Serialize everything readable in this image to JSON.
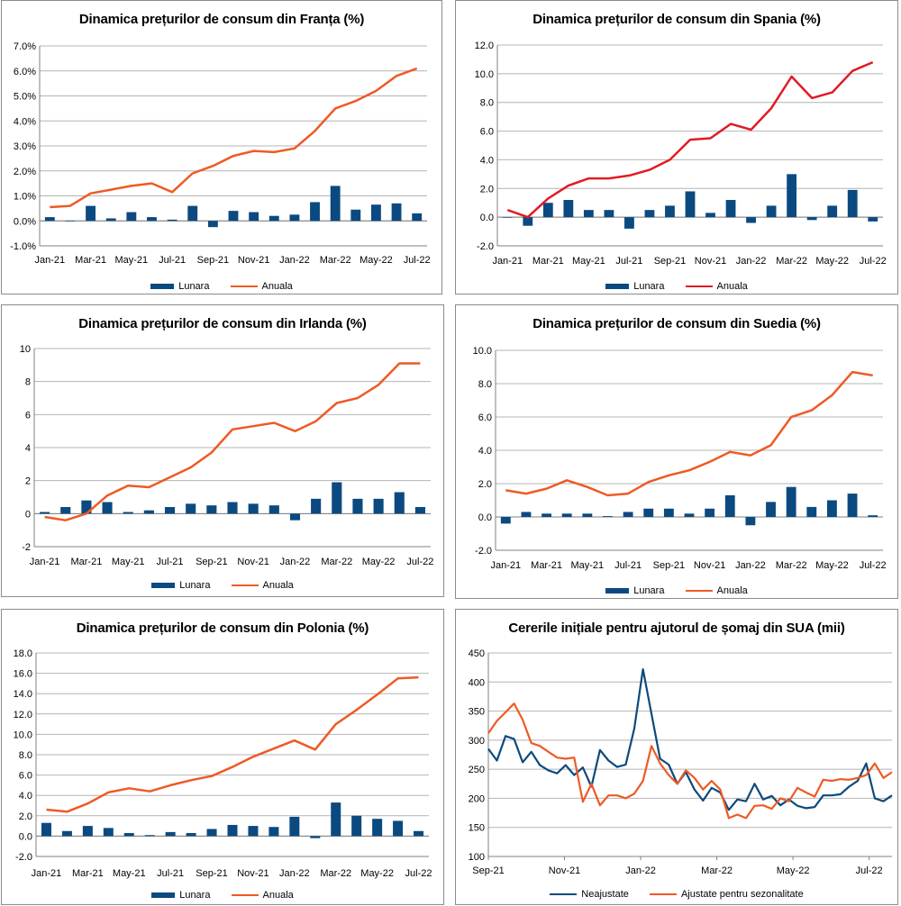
{
  "colors": {
    "bar": "#0b4a80",
    "orange": "#ee5a24",
    "red": "#e01b24",
    "navy": "#0c4a7c",
    "grid": "#b4b4b4",
    "axis": "#808080"
  },
  "chart_data": [
    {
      "id": "france",
      "type": "bar+line",
      "title": "Dinamica prețurilor de consum din Franța (%)",
      "ylim": [
        -1,
        7
      ],
      "ystep": 1,
      "ytick_format": "pct1",
      "xticks": [
        "Jan-21",
        "Mar-21",
        "May-21",
        "Jul-21",
        "Sep-21",
        "Nov-21",
        "Jan-22",
        "Mar-22",
        "May-22",
        "Jul-22"
      ],
      "legend": [
        "Lunara",
        "Anuala"
      ],
      "line_color_key": "orange",
      "series": [
        {
          "name": "Lunara",
          "kind": "bar",
          "values": [
            0.15,
            0.0,
            0.6,
            0.1,
            0.35,
            0.15,
            0.05,
            0.6,
            -0.25,
            0.4,
            0.35,
            0.2,
            0.25,
            0.75,
            1.4,
            0.45,
            0.65,
            0.7,
            0.3
          ]
        },
        {
          "name": "Anuala",
          "kind": "line",
          "values": [
            0.55,
            0.6,
            1.1,
            1.25,
            1.4,
            1.5,
            1.15,
            1.9,
            2.2,
            2.6,
            2.8,
            2.75,
            2.9,
            3.6,
            4.5,
            4.8,
            5.2,
            5.8,
            6.1
          ]
        }
      ]
    },
    {
      "id": "spain",
      "type": "bar+line",
      "title": "Dinamica prețurilor de consum din Spania (%)",
      "ylim": [
        -2,
        12
      ],
      "ystep": 2,
      "ytick_format": "dec1",
      "xticks": [
        "Jan-21",
        "Mar-21",
        "May-21",
        "Jul-21",
        "Sep-21",
        "Nov-21",
        "Jan-22",
        "Mar-22",
        "May-22",
        "Jul-22"
      ],
      "legend": [
        "Lunara",
        "Anuala"
      ],
      "line_color_key": "red",
      "series": [
        {
          "name": "Lunara",
          "kind": "bar",
          "values": [
            0.0,
            -0.6,
            1.0,
            1.2,
            0.5,
            0.5,
            -0.8,
            0.5,
            0.8,
            1.8,
            0.3,
            1.2,
            -0.4,
            0.8,
            3.0,
            -0.2,
            0.8,
            1.9,
            -0.3
          ]
        },
        {
          "name": "Anuala",
          "kind": "line",
          "values": [
            0.5,
            0.0,
            1.3,
            2.2,
            2.7,
            2.7,
            2.9,
            3.3,
            4.0,
            5.4,
            5.5,
            6.5,
            6.1,
            7.6,
            9.8,
            8.3,
            8.7,
            10.2,
            10.8
          ]
        }
      ]
    },
    {
      "id": "ireland",
      "type": "bar+line",
      "title": "Dinamica prețurilor de consum din Irlanda (%)",
      "ylim": [
        -2,
        10
      ],
      "ystep": 2,
      "ytick_format": "int",
      "xticks": [
        "Jan-21",
        "Mar-21",
        "May-21",
        "Jul-21",
        "Sep-21",
        "Nov-21",
        "Jan-22",
        "Mar-22",
        "May-22",
        "Jul-22"
      ],
      "legend": [
        "Lunara",
        "Anuala"
      ],
      "line_color_key": "orange",
      "series": [
        {
          "name": "Lunara",
          "kind": "bar",
          "values": [
            0.1,
            0.4,
            0.8,
            0.7,
            0.1,
            0.2,
            0.4,
            0.6,
            0.5,
            0.7,
            0.6,
            0.5,
            -0.4,
            0.9,
            1.9,
            0.9,
            0.9,
            1.3,
            0.4
          ]
        },
        {
          "name": "Anuala",
          "kind": "line",
          "values": [
            -0.2,
            -0.4,
            0.0,
            1.1,
            1.7,
            1.6,
            2.2,
            2.8,
            3.7,
            5.1,
            5.3,
            5.5,
            5.0,
            5.6,
            6.7,
            7.0,
            7.8,
            9.1,
            9.1
          ]
        }
      ]
    },
    {
      "id": "sweden",
      "type": "bar+line",
      "title": "Dinamica prețurilor de consum din Suedia (%)",
      "ylim": [
        -2,
        10
      ],
      "ystep": 2,
      "ytick_format": "dec1",
      "xticks": [
        "Jan-21",
        "Mar-21",
        "May-21",
        "Jul-21",
        "Sep-21",
        "Nov-21",
        "Jan-22",
        "Mar-22",
        "May-22",
        "Jul-22"
      ],
      "legend": [
        "Lunara",
        "Anuala"
      ],
      "line_color_key": "orange",
      "series": [
        {
          "name": "Lunara",
          "kind": "bar",
          "values": [
            -0.4,
            0.3,
            0.2,
            0.2,
            0.2,
            0.05,
            0.3,
            0.5,
            0.5,
            0.2,
            0.5,
            1.3,
            -0.5,
            0.9,
            1.8,
            0.6,
            1.0,
            1.4,
            0.1
          ]
        },
        {
          "name": "Anuala",
          "kind": "line",
          "values": [
            1.6,
            1.4,
            1.7,
            2.2,
            1.8,
            1.3,
            1.4,
            2.1,
            2.5,
            2.8,
            3.3,
            3.9,
            3.7,
            4.3,
            6.0,
            6.4,
            7.3,
            8.7,
            8.5
          ]
        }
      ]
    },
    {
      "id": "poland",
      "type": "bar+line",
      "title": "Dinamica prețurilor de consum din Polonia (%)",
      "ylim": [
        -2,
        18
      ],
      "ystep": 2,
      "ytick_format": "dec1",
      "xticks": [
        "Jan-21",
        "Mar-21",
        "May-21",
        "Jul-21",
        "Sep-21",
        "Nov-21",
        "Jan-22",
        "Mar-22",
        "May-22",
        "Jul-22"
      ],
      "legend": [
        "Lunara",
        "Anuala"
      ],
      "line_color_key": "orange",
      "series": [
        {
          "name": "Lunara",
          "kind": "bar",
          "values": [
            1.3,
            0.5,
            1.0,
            0.8,
            0.3,
            0.1,
            0.4,
            0.3,
            0.7,
            1.1,
            1.0,
            0.9,
            1.9,
            -0.2,
            3.3,
            2.0,
            1.7,
            1.5,
            0.5
          ]
        },
        {
          "name": "Anuala",
          "kind": "line",
          "values": [
            2.6,
            2.4,
            3.2,
            4.3,
            4.7,
            4.4,
            5.0,
            5.5,
            5.9,
            6.8,
            7.8,
            8.6,
            9.4,
            8.5,
            11.0,
            12.4,
            13.9,
            15.5,
            15.6
          ]
        }
      ]
    },
    {
      "id": "us_claims",
      "type": "line",
      "title": "Cererile inițiale pentru ajutorul de șomaj din SUA (mii)",
      "ylim": [
        100,
        450
      ],
      "ystep": 50,
      "ytick_format": "int",
      "xticks": [
        "Sep-21",
        "Nov-21",
        "Jan-22",
        "Mar-22",
        "May-22",
        "Jul-22"
      ],
      "legend": [
        "Neajustate",
        "Ajustate pentru sezonalitate"
      ],
      "series": [
        {
          "name": "Neajustate",
          "kind": "line",
          "color_key": "navy",
          "values": [
            285,
            265,
            307,
            302,
            262,
            280,
            257,
            248,
            243,
            257,
            240,
            253,
            220,
            283,
            265,
            254,
            258,
            320,
            422,
            345,
            268,
            258,
            225,
            245,
            215,
            196,
            218,
            210,
            180,
            198,
            195,
            225,
            198,
            204,
            188,
            198,
            187,
            183,
            185,
            205,
            205,
            207,
            220,
            230,
            260,
            200,
            195,
            205
          ]
        },
        {
          "name": "Ajustate pentru sezonalitate",
          "kind": "line",
          "color_key": "orange",
          "values": [
            312,
            333,
            348,
            363,
            335,
            295,
            290,
            280,
            270,
            268,
            270,
            194,
            225,
            188,
            205,
            205,
            200,
            208,
            230,
            290,
            260,
            240,
            225,
            248,
            235,
            215,
            230,
            215,
            166,
            172,
            166,
            187,
            188,
            182,
            200,
            195,
            218,
            210,
            203,
            232,
            230,
            233,
            232,
            235,
            240,
            260,
            235,
            245
          ]
        }
      ]
    }
  ]
}
